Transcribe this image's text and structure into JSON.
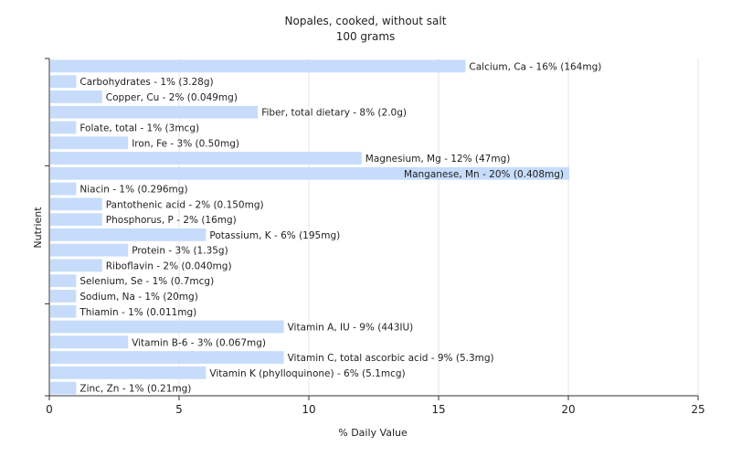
{
  "chart_data": {
    "type": "bar",
    "orientation": "horizontal",
    "title": "Nopales, cooked, without salt",
    "subtitle": "100 grams",
    "xlabel": "% Daily Value",
    "ylabel": "Nutrient",
    "xlim": [
      0,
      25
    ],
    "xticks": [
      "0",
      "5",
      "10",
      "15",
      "20",
      "25"
    ],
    "grid": true,
    "bar_color": "#c6dcfa",
    "grid_color": "#e4e4e4",
    "categories": [
      "Calcium, Ca - 16% (164mg)",
      "Carbohydrates - 1% (3.28g)",
      "Copper, Cu - 2% (0.049mg)",
      "Fiber, total dietary - 8% (2.0g)",
      "Folate, total - 1% (3mcg)",
      "Iron, Fe - 3% (0.50mg)",
      "Magnesium, Mg - 12% (47mg)",
      "Manganese, Mn - 20% (0.408mg)",
      "Niacin - 1% (0.296mg)",
      "Pantothenic acid - 2% (0.150mg)",
      "Phosphorus, P - 2% (16mg)",
      "Potassium, K - 6% (195mg)",
      "Protein - 3% (1.35g)",
      "Riboflavin - 2% (0.040mg)",
      "Selenium, Se - 1% (0.7mcg)",
      "Sodium, Na - 1% (20mg)",
      "Thiamin - 1% (0.011mg)",
      "Vitamin A, IU - 9% (443IU)",
      "Vitamin B-6 - 3% (0.067mg)",
      "Vitamin C, total ascorbic acid - 9% (5.3mg)",
      "Vitamin K (phylloquinone) - 6% (5.1mcg)",
      "Zinc, Zn - 1% (0.21mg)"
    ],
    "values": [
      16,
      1,
      2,
      8,
      1,
      3,
      12,
      20,
      1,
      2,
      2,
      6,
      3,
      2,
      1,
      1,
      1,
      9,
      3,
      9,
      6,
      1
    ]
  }
}
